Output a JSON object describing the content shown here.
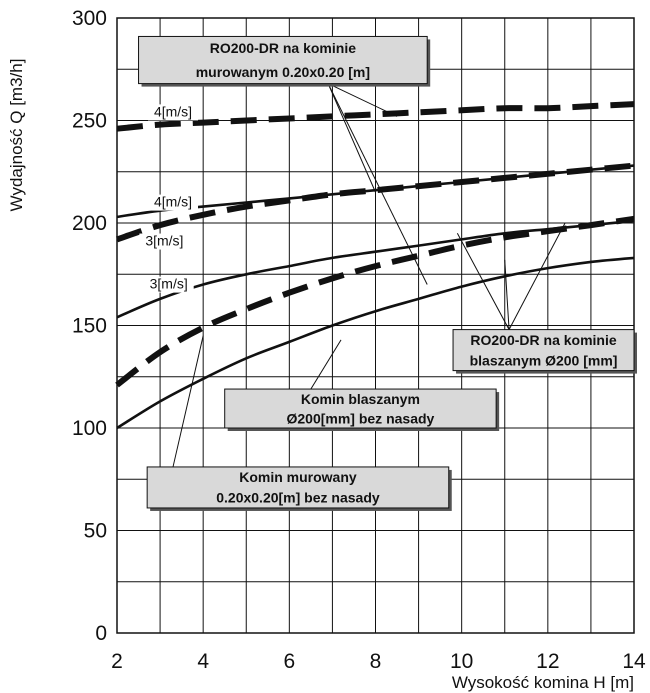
{
  "chart_data": {
    "type": "line",
    "xlabel": "Wysokość komina H [m]",
    "ylabel": "Wydajność Q [m3/h]",
    "xlim": [
      2,
      14
    ],
    "ylim": [
      0,
      300
    ],
    "x_ticks": [
      "2",
      "4",
      "6",
      "8",
      "10",
      "12",
      "14"
    ],
    "y_ticks": [
      "0",
      "50",
      "100",
      "150",
      "200",
      "250",
      "300"
    ],
    "grid": true,
    "x": [
      2,
      3,
      4,
      5,
      6,
      7,
      8,
      9,
      10,
      11,
      12,
      13,
      14
    ],
    "series": [
      {
        "style": "dashed-thick",
        "values": [
          246,
          248,
          249,
          250,
          251,
          252,
          253,
          254,
          255,
          256,
          256,
          257,
          258
        ]
      },
      {
        "style": "dashed-thick",
        "values": [
          192,
          199,
          204,
          208,
          211,
          214,
          216,
          218,
          220,
          222,
          224,
          226,
          228
        ]
      },
      {
        "style": "dashed-thick",
        "values": [
          121,
          137,
          149,
          158,
          166,
          173,
          179,
          184,
          189,
          193,
          196,
          199,
          202
        ]
      },
      {
        "style": "solid",
        "values": [
          203,
          206,
          208,
          210,
          212,
          214,
          216,
          218,
          220,
          222,
          224,
          226,
          228
        ]
      },
      {
        "style": "solid",
        "values": [
          154,
          163,
          170,
          175,
          179,
          183,
          186,
          189,
          192,
          195,
          197,
          199,
          201
        ]
      },
      {
        "style": "solid",
        "values": [
          100,
          113,
          124,
          134,
          142,
          150,
          157,
          163,
          169,
          174,
          178,
          181,
          183
        ]
      }
    ],
    "curve_labels": [
      {
        "text": "4[m/s]",
        "x": 3.3,
        "y": 252
      },
      {
        "text": "4[m/s]",
        "x": 3.3,
        "y": 208
      },
      {
        "text": "3[m/s]",
        "x": 3.1,
        "y": 189
      },
      {
        "text": "3[m/s]",
        "x": 3.2,
        "y": 168
      }
    ],
    "annotations": [
      {
        "lines": [
          "RO200-DR na kominie",
          "murowanym 0.20x0.20 [m]"
        ],
        "box": {
          "x": [
            2.5,
            9.2
          ],
          "y": [
            291,
            268
          ]
        },
        "pointers": [
          [
            6.9,
            268,
            8.5,
            252
          ],
          [
            6.9,
            268,
            8.0,
            215
          ],
          [
            6.9,
            268,
            9.2,
            170
          ]
        ]
      },
      {
        "lines": [
          "RO200-DR na kominie",
          "blaszanym Ø200 [mm]"
        ],
        "box": {
          "x": [
            9.8,
            14.0
          ],
          "y": [
            148,
            128
          ]
        },
        "pointers": [
          [
            11.1,
            148,
            9.9,
            195
          ],
          [
            11.1,
            148,
            11.0,
            182
          ],
          [
            11.1,
            148,
            12.4,
            200
          ]
        ]
      },
      {
        "lines": [
          "Komin blaszanym",
          "Ø200[mm] bez nasady"
        ],
        "box": {
          "x": [
            4.5,
            10.8
          ],
          "y": [
            119,
            100
          ]
        },
        "pointers": [
          [
            6.5,
            119,
            7.2,
            143
          ]
        ]
      },
      {
        "lines": [
          "Komin murowany",
          "0.20x0.20[m] bez nasady"
        ],
        "box": {
          "x": [
            2.7,
            9.7
          ],
          "y": [
            81,
            61
          ]
        },
        "pointers": [
          [
            3.3,
            81,
            4.0,
            145
          ]
        ]
      }
    ]
  }
}
